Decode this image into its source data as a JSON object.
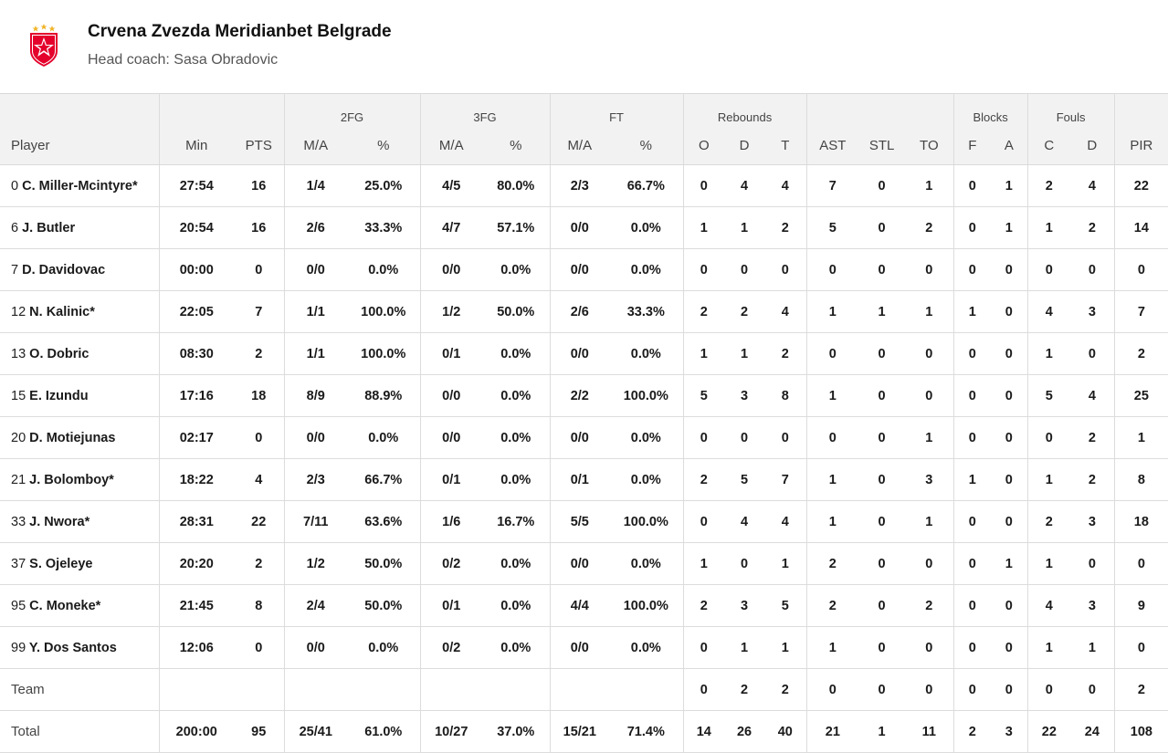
{
  "team": {
    "name": "Crvena Zvezda Meridianbet Belgrade",
    "coach": "Head coach: Sasa Obradovic",
    "logo_colors": {
      "primary": "#e4002b",
      "star": "#f0b429"
    }
  },
  "table": {
    "group_headers": {
      "fg2": "2FG",
      "fg3": "3FG",
      "ft": "FT",
      "reb": "Rebounds",
      "blk": "Blocks",
      "fouls": "Fouls"
    },
    "col_headers": {
      "player": "Player",
      "min": "Min",
      "pts": "PTS",
      "fg2_ma": "M/A",
      "fg2_pct": "%",
      "fg3_ma": "M/A",
      "fg3_pct": "%",
      "ft_ma": "M/A",
      "ft_pct": "%",
      "reb_o": "O",
      "reb_d": "D",
      "reb_t": "T",
      "ast": "AST",
      "stl": "STL",
      "to": "TO",
      "blk_f": "F",
      "blk_a": "A",
      "foul_c": "C",
      "foul_d": "D",
      "pir": "PIR"
    },
    "rows": [
      {
        "num": "0",
        "name": "C. Miller-Mcintyre*",
        "min": "27:54",
        "pts": "16",
        "fg2": "1/4",
        "fg2p": "25.0%",
        "fg3": "4/5",
        "fg3p": "80.0%",
        "ft": "2/3",
        "ftp": "66.7%",
        "o": "0",
        "d": "4",
        "t": "4",
        "ast": "7",
        "stl": "0",
        "to": "1",
        "bf": "0",
        "ba": "1",
        "fc": "2",
        "fd": "4",
        "pir": "22"
      },
      {
        "num": "6",
        "name": "J. Butler",
        "min": "20:54",
        "pts": "16",
        "fg2": "2/6",
        "fg2p": "33.3%",
        "fg3": "4/7",
        "fg3p": "57.1%",
        "ft": "0/0",
        "ftp": "0.0%",
        "o": "1",
        "d": "1",
        "t": "2",
        "ast": "5",
        "stl": "0",
        "to": "2",
        "bf": "0",
        "ba": "1",
        "fc": "1",
        "fd": "2",
        "pir": "14"
      },
      {
        "num": "7",
        "name": "D. Davidovac",
        "min": "00:00",
        "pts": "0",
        "fg2": "0/0",
        "fg2p": "0.0%",
        "fg3": "0/0",
        "fg3p": "0.0%",
        "ft": "0/0",
        "ftp": "0.0%",
        "o": "0",
        "d": "0",
        "t": "0",
        "ast": "0",
        "stl": "0",
        "to": "0",
        "bf": "0",
        "ba": "0",
        "fc": "0",
        "fd": "0",
        "pir": "0"
      },
      {
        "num": "12",
        "name": "N. Kalinic*",
        "min": "22:05",
        "pts": "7",
        "fg2": "1/1",
        "fg2p": "100.0%",
        "fg3": "1/2",
        "fg3p": "50.0%",
        "ft": "2/6",
        "ftp": "33.3%",
        "o": "2",
        "d": "2",
        "t": "4",
        "ast": "1",
        "stl": "1",
        "to": "1",
        "bf": "1",
        "ba": "0",
        "fc": "4",
        "fd": "3",
        "pir": "7"
      },
      {
        "num": "13",
        "name": "O. Dobric",
        "min": "08:30",
        "pts": "2",
        "fg2": "1/1",
        "fg2p": "100.0%",
        "fg3": "0/1",
        "fg3p": "0.0%",
        "ft": "0/0",
        "ftp": "0.0%",
        "o": "1",
        "d": "1",
        "t": "2",
        "ast": "0",
        "stl": "0",
        "to": "0",
        "bf": "0",
        "ba": "0",
        "fc": "1",
        "fd": "0",
        "pir": "2"
      },
      {
        "num": "15",
        "name": "E. Izundu",
        "min": "17:16",
        "pts": "18",
        "fg2": "8/9",
        "fg2p": "88.9%",
        "fg3": "0/0",
        "fg3p": "0.0%",
        "ft": "2/2",
        "ftp": "100.0%",
        "o": "5",
        "d": "3",
        "t": "8",
        "ast": "1",
        "stl": "0",
        "to": "0",
        "bf": "0",
        "ba": "0",
        "fc": "5",
        "fd": "4",
        "pir": "25"
      },
      {
        "num": "20",
        "name": "D. Motiejunas",
        "min": "02:17",
        "pts": "0",
        "fg2": "0/0",
        "fg2p": "0.0%",
        "fg3": "0/0",
        "fg3p": "0.0%",
        "ft": "0/0",
        "ftp": "0.0%",
        "o": "0",
        "d": "0",
        "t": "0",
        "ast": "0",
        "stl": "0",
        "to": "1",
        "bf": "0",
        "ba": "0",
        "fc": "0",
        "fd": "2",
        "pir": "1"
      },
      {
        "num": "21",
        "name": "J. Bolomboy*",
        "min": "18:22",
        "pts": "4",
        "fg2": "2/3",
        "fg2p": "66.7%",
        "fg3": "0/1",
        "fg3p": "0.0%",
        "ft": "0/1",
        "ftp": "0.0%",
        "o": "2",
        "d": "5",
        "t": "7",
        "ast": "1",
        "stl": "0",
        "to": "3",
        "bf": "1",
        "ba": "0",
        "fc": "1",
        "fd": "2",
        "pir": "8"
      },
      {
        "num": "33",
        "name": "J. Nwora*",
        "min": "28:31",
        "pts": "22",
        "fg2": "7/11",
        "fg2p": "63.6%",
        "fg3": "1/6",
        "fg3p": "16.7%",
        "ft": "5/5",
        "ftp": "100.0%",
        "o": "0",
        "d": "4",
        "t": "4",
        "ast": "1",
        "stl": "0",
        "to": "1",
        "bf": "0",
        "ba": "0",
        "fc": "2",
        "fd": "3",
        "pir": "18"
      },
      {
        "num": "37",
        "name": "S. Ojeleye",
        "min": "20:20",
        "pts": "2",
        "fg2": "1/2",
        "fg2p": "50.0%",
        "fg3": "0/2",
        "fg3p": "0.0%",
        "ft": "0/0",
        "ftp": "0.0%",
        "o": "1",
        "d": "0",
        "t": "1",
        "ast": "2",
        "stl": "0",
        "to": "0",
        "bf": "0",
        "ba": "1",
        "fc": "1",
        "fd": "0",
        "pir": "0"
      },
      {
        "num": "95",
        "name": "C. Moneke*",
        "min": "21:45",
        "pts": "8",
        "fg2": "2/4",
        "fg2p": "50.0%",
        "fg3": "0/1",
        "fg3p": "0.0%",
        "ft": "4/4",
        "ftp": "100.0%",
        "o": "2",
        "d": "3",
        "t": "5",
        "ast": "2",
        "stl": "0",
        "to": "2",
        "bf": "0",
        "ba": "0",
        "fc": "4",
        "fd": "3",
        "pir": "9"
      },
      {
        "num": "99",
        "name": "Y. Dos Santos",
        "min": "12:06",
        "pts": "0",
        "fg2": "0/0",
        "fg2p": "0.0%",
        "fg3": "0/2",
        "fg3p": "0.0%",
        "ft": "0/0",
        "ftp": "0.0%",
        "o": "0",
        "d": "1",
        "t": "1",
        "ast": "1",
        "stl": "0",
        "to": "0",
        "bf": "0",
        "ba": "0",
        "fc": "1",
        "fd": "1",
        "pir": "0"
      }
    ],
    "team_row": {
      "label": "Team",
      "min": "",
      "pts": "",
      "fg2": "",
      "fg2p": "",
      "fg3": "",
      "fg3p": "",
      "ft": "",
      "ftp": "",
      "o": "0",
      "d": "2",
      "t": "2",
      "ast": "0",
      "stl": "0",
      "to": "0",
      "bf": "0",
      "ba": "0",
      "fc": "0",
      "fd": "0",
      "pir": "2"
    },
    "total_row": {
      "label": "Total",
      "min": "200:00",
      "pts": "95",
      "fg2": "25/41",
      "fg2p": "61.0%",
      "fg3": "10/27",
      "fg3p": "37.0%",
      "ft": "15/21",
      "ftp": "71.4%",
      "o": "14",
      "d": "26",
      "t": "40",
      "ast": "21",
      "stl": "1",
      "to": "11",
      "bf": "2",
      "ba": "3",
      "fc": "22",
      "fd": "24",
      "pir": "108"
    }
  }
}
